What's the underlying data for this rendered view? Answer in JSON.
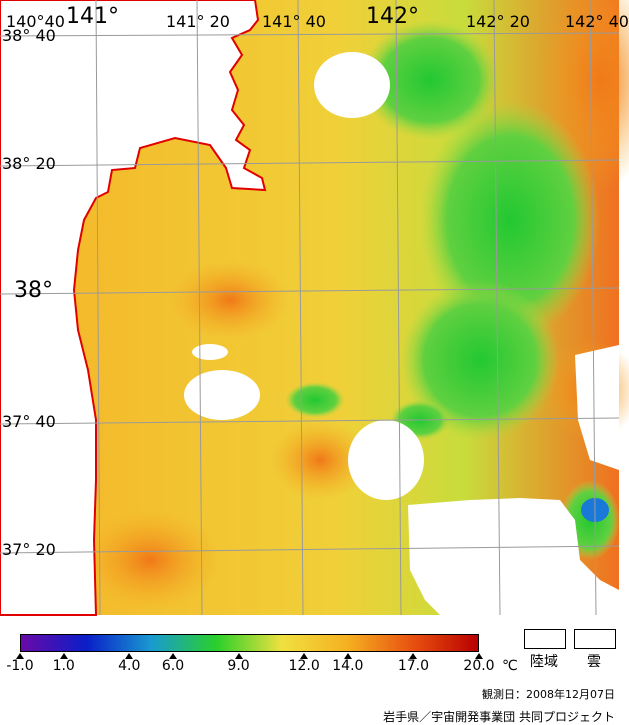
{
  "map": {
    "lon_labels": [
      {
        "text": "140°40"
      },
      {
        "text": "141°"
      },
      {
        "text": "141° 20"
      },
      {
        "text": "141° 40"
      },
      {
        "text": "142°"
      },
      {
        "text": "142° 20"
      },
      {
        "text": "142° 40"
      }
    ],
    "lat_labels": [
      {
        "text": "38° 40"
      },
      {
        "text": "38° 20"
      },
      {
        "text": "38°"
      },
      {
        "text": "37° 40"
      },
      {
        "text": "37° 20"
      }
    ],
    "colors": {
      "land": "#ffffff",
      "coast": "#e00000",
      "grid": "#9a9a9a"
    }
  },
  "legend": {
    "ticks": [
      "-1.0",
      "1.0",
      "4.0",
      "6.0",
      "9.0",
      "12.0",
      "14.0",
      "17.0",
      "20.0"
    ],
    "unit": "℃",
    "gradient_stops": [
      "#6a0aa8",
      "#0a1ec8",
      "#1a9ad0",
      "#2ad02a",
      "#f0e040",
      "#f5b020",
      "#e85010",
      "#b80000"
    ],
    "land_label": "陸域",
    "cloud_label": "雲"
  },
  "observation_date": "観測日：2008年12月07日",
  "credit": "岩手県／宇宙開発事業団 共同プロジェクト"
}
